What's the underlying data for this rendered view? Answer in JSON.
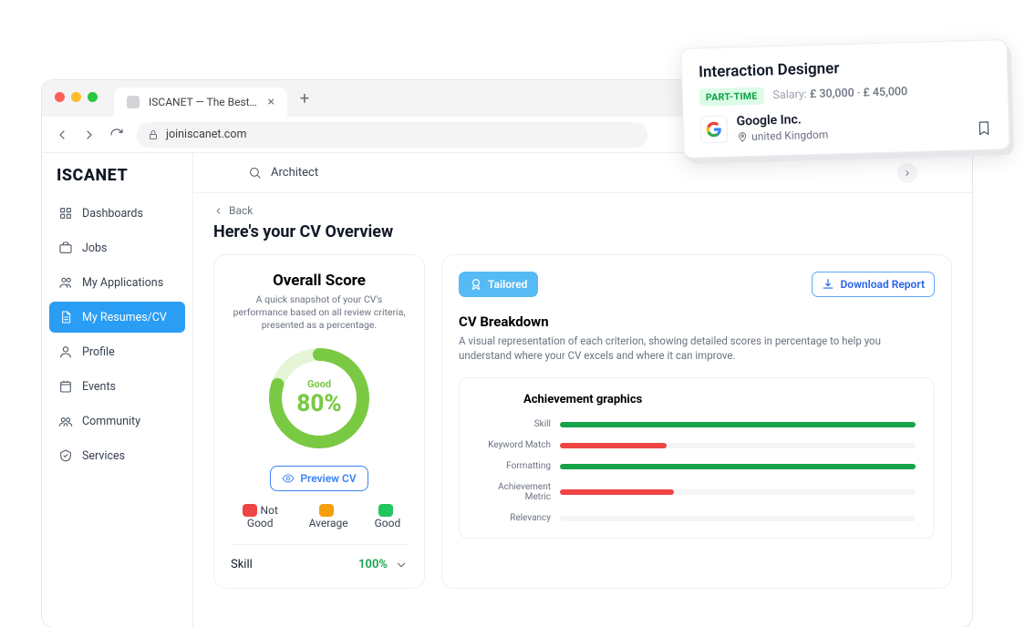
{
  "browser": {
    "traffic_colors": [
      "#ff5f57",
      "#febc2e",
      "#28c840"
    ],
    "tab_title": "ISCANET — The Best Web D",
    "url": "joiniscanet.com"
  },
  "brand": "ISCANET",
  "search_value": "Architect",
  "sidebar": {
    "items": [
      {
        "label": "Dashboards"
      },
      {
        "label": "Jobs"
      },
      {
        "label": "My Applications"
      },
      {
        "label": "My Resumes/CV"
      },
      {
        "label": "Profile"
      },
      {
        "label": "Events"
      },
      {
        "label": "Community"
      },
      {
        "label": "Services"
      }
    ],
    "active_index": 3
  },
  "back_label": "Back",
  "page_title": "Here's your CV Overview",
  "score": {
    "title": "Overall Score",
    "subtitle": "A quick snapshot of your CV's performance based on all review criteria, presented as a percentage.",
    "label": "Good",
    "percent_text": "80%",
    "percent": 80,
    "ring_color": "#7ac943",
    "ring_bg": "#e5f5d6",
    "preview_label": "Preview CV",
    "legend": [
      {
        "label": "Not Good",
        "color": "#ef4444"
      },
      {
        "label": "Average",
        "color": "#f59e0b"
      },
      {
        "label": "Good",
        "color": "#22c55e"
      }
    ],
    "metric_name": "Skill",
    "metric_value": "100%"
  },
  "breakdown": {
    "tailored_label": "Tailored",
    "download_label": "Download  Report",
    "title": "CV Breakdown",
    "subtitle": "A visual representation of each criterion, showing detailed scores in percentage to help you understand where your CV excels and where it can improve.",
    "chart_title": "Achievement graphics",
    "bars": [
      {
        "label": "Skill",
        "value": 100,
        "color": "#16a34a"
      },
      {
        "label": "Keyword Match",
        "value": 30,
        "color": "#ef4444"
      },
      {
        "label": "Formatting",
        "value": 100,
        "color": "#16a34a"
      },
      {
        "label": "Achievement Metric",
        "value": 32,
        "color": "#ef4444"
      },
      {
        "label": "Relevancy",
        "value": 0,
        "color": "#ef4444"
      }
    ]
  },
  "job": {
    "title": "Interaction Designer",
    "badge": "PART-TIME",
    "salary_label": "Salary:",
    "salary_low": "£ 30,000",
    "salary_sep": " - ",
    "salary_high": "£ 45,000",
    "company": "Google Inc.",
    "location": "united Kingdom"
  },
  "colors": {
    "accent": "#2a9df4",
    "link": "#2563eb"
  }
}
